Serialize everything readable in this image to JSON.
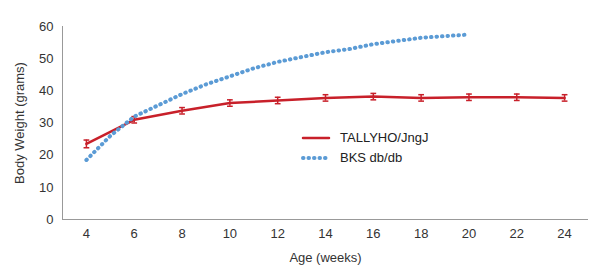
{
  "chart_data": {
    "type": "line",
    "x_label": "Age (weeks)",
    "y_label": "Body Weight (grams)",
    "xlim": [
      3,
      25
    ],
    "xticks": [
      4,
      6,
      8,
      10,
      12,
      14,
      16,
      18,
      20,
      22,
      24
    ],
    "ylim": [
      0,
      60
    ],
    "yticks": [
      0,
      10,
      20,
      30,
      40,
      50,
      60
    ],
    "grid": false,
    "legend": "center",
    "series": [
      {
        "name": "TALLYHO/JngJ",
        "color": "#c8202a",
        "line_style": "solid",
        "x": [
          4,
          6,
          8,
          10,
          12,
          14,
          16,
          18,
          20,
          22,
          24
        ],
        "values": [
          23.5,
          31,
          33.8,
          36.2,
          37,
          37.8,
          38.2,
          37.8,
          38,
          38,
          37.8
        ],
        "errors": [
          1.2,
          1,
          1,
          1,
          1,
          1,
          1,
          1,
          1,
          1,
          1
        ]
      },
      {
        "name": "BKS db/db",
        "color": "#5b9bd5",
        "line_style": "dotted",
        "x": [
          4,
          5,
          6,
          7,
          8,
          9,
          10,
          11,
          12,
          13,
          14,
          15,
          16,
          17,
          18,
          19,
          20
        ],
        "values": [
          18.5,
          26,
          32,
          35.5,
          39,
          42,
          44.5,
          47,
          49,
          50.5,
          52,
          53,
          54.5,
          55.5,
          56.5,
          57,
          57.5
        ]
      }
    ]
  }
}
